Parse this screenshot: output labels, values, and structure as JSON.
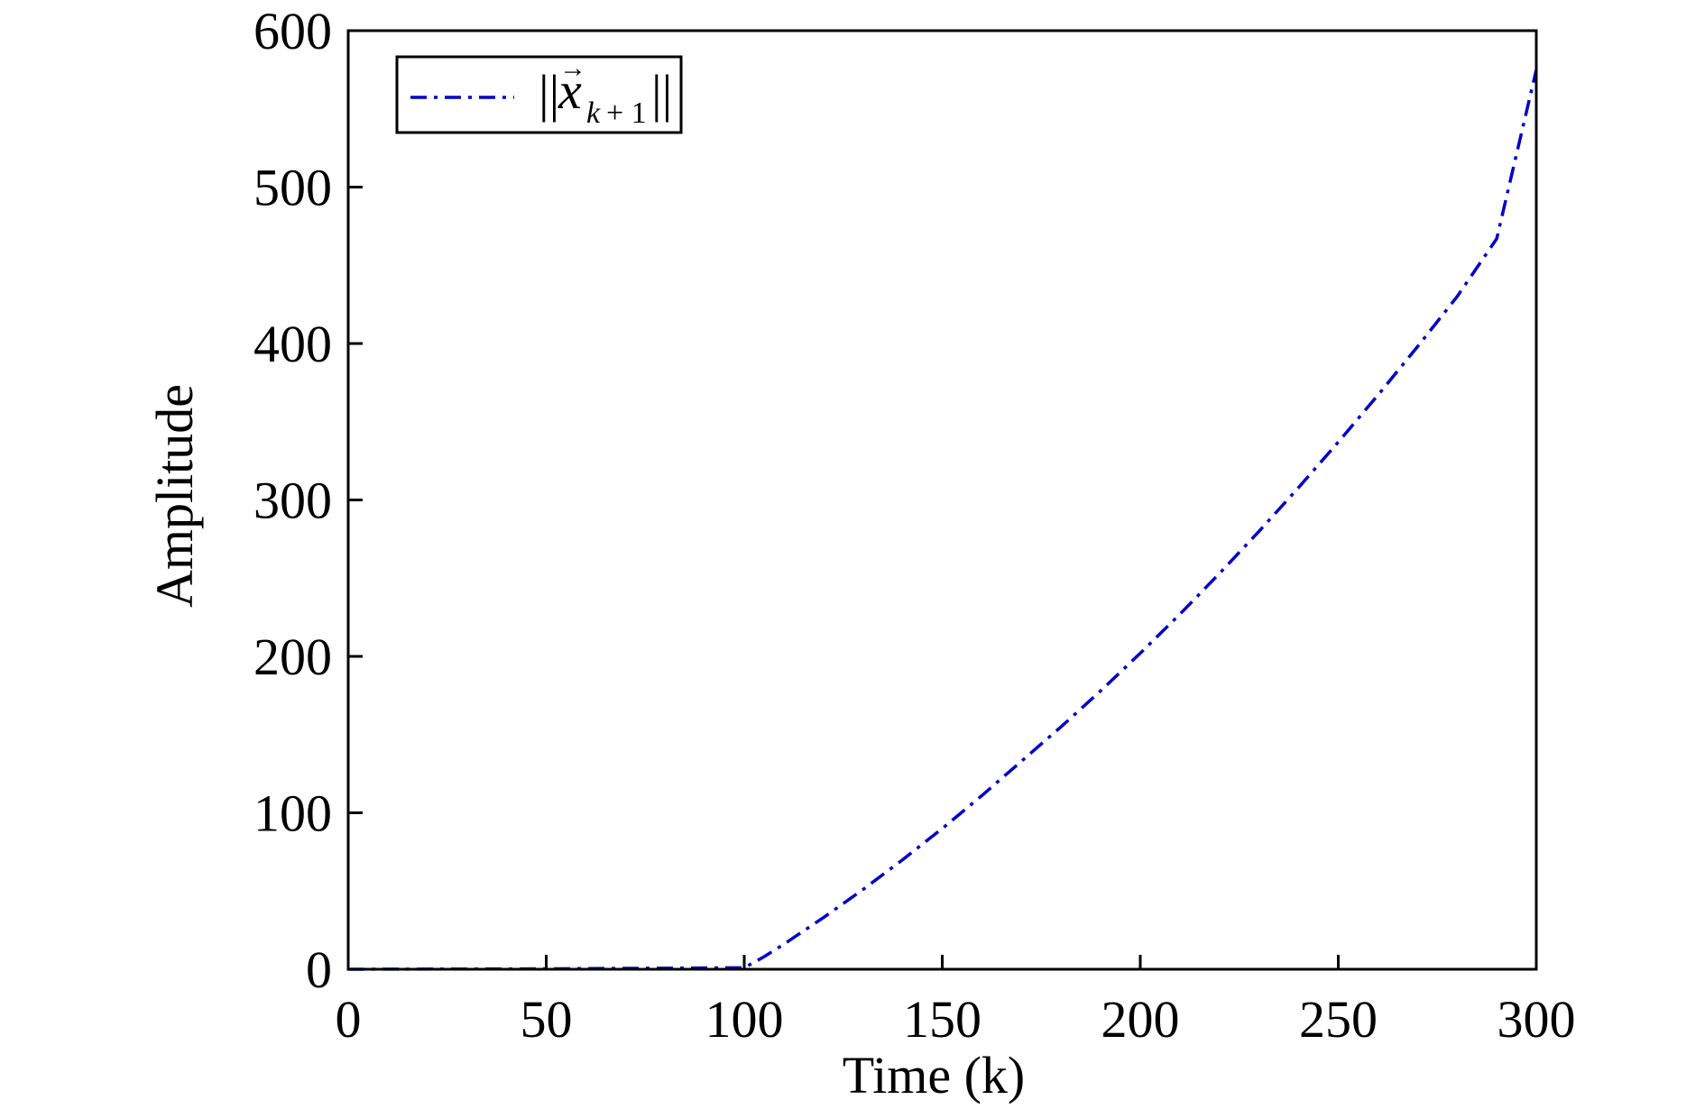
{
  "chart_data": {
    "type": "line",
    "xlabel": "Time (k)",
    "ylabel": "Amplitude",
    "xlim": [
      0,
      300
    ],
    "ylim": [
      0,
      600
    ],
    "xticks": [
      0,
      50,
      100,
      150,
      200,
      250,
      300
    ],
    "yticks": [
      0,
      100,
      200,
      300,
      400,
      500,
      600
    ],
    "grid": false,
    "legend_position": "top-left",
    "series": [
      {
        "name": "||x→_{k+1}||",
        "color": "#0000cc",
        "line_style": "dash-dot",
        "x": [
          0,
          50,
          100,
          105,
          110,
          120,
          130,
          140,
          150,
          160,
          170,
          180,
          190,
          200,
          210,
          220,
          230,
          240,
          250,
          260,
          270,
          280,
          290,
          300
        ],
        "y": [
          0,
          0.3,
          1,
          8,
          16,
          33,
          51,
          70,
          90,
          111,
          133,
          155,
          178,
          202,
          227,
          253,
          280,
          308,
          337,
          367,
          398,
          430,
          467,
          575
        ]
      }
    ]
  },
  "legend": {
    "entries": [
      {
        "text": "||x→_{k+1}||"
      }
    ]
  }
}
